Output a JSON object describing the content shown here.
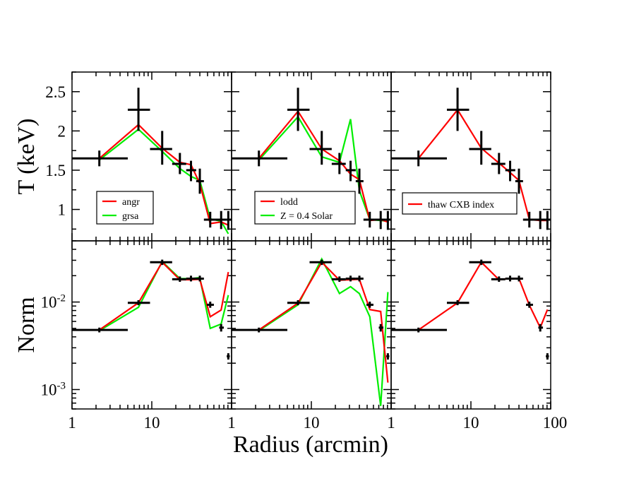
{
  "chart_data": {
    "type": "line",
    "layout": "2x3 panel grid with shared x axis",
    "xlabel": "Radius (arcmin)",
    "xscale": "log",
    "xlim": [
      1,
      100
    ],
    "x_tick_labels": [
      "1",
      "10",
      "1",
      "10",
      "1",
      "10",
      "100"
    ],
    "rows": [
      {
        "ylabel": "T (keV)",
        "yscale": "linear",
        "ylim": [
          0.6,
          2.75
        ],
        "y_tick_labels": [
          "2.5",
          "2",
          "1.5",
          "1"
        ],
        "y_tick_values": [
          2.5,
          2.0,
          1.5,
          1.0
        ]
      },
      {
        "ylabel": "Norm",
        "yscale": "log",
        "ylim": [
          0.0006,
          0.05
        ],
        "y_tick_labels": [
          {
            "base": "10",
            "exp": "-2",
            "value": 0.01
          },
          {
            "base": "10",
            "exp": "-3",
            "value": 0.001
          }
        ]
      }
    ],
    "data_points": {
      "T": [
        {
          "x": 2.2,
          "x_err": [
            1.0,
            5.0
          ],
          "y": 1.65,
          "y_err": [
            1.55,
            1.75
          ]
        },
        {
          "x": 6.8,
          "x_err": [
            5.0,
            9.5
          ],
          "y": 2.27,
          "y_err": [
            2.0,
            2.55
          ]
        },
        {
          "x": 13.5,
          "x_err": [
            9.5,
            18.0
          ],
          "y": 1.77,
          "y_err": [
            1.57,
            2.0
          ]
        },
        {
          "x": 22.5,
          "x_err": [
            18.0,
            27.0
          ],
          "y": 1.58,
          "y_err": [
            1.45,
            1.72
          ]
        },
        {
          "x": 31.0,
          "x_err": [
            27.0,
            36.0
          ],
          "y": 1.5,
          "y_err": [
            1.36,
            1.62
          ]
        },
        {
          "x": 40.0,
          "x_err": [
            36.0,
            45.0
          ],
          "y": 1.36,
          "y_err": [
            1.2,
            1.52
          ]
        },
        {
          "x": 54.0,
          "x_err": [
            45.0,
            62.0
          ],
          "y": 0.87,
          "y_err": [
            0.77,
            0.97
          ]
        },
        {
          "x": 74.0,
          "x_err": [
            62.0,
            86.0
          ],
          "y": 0.87,
          "y_err": [
            0.75,
            0.98
          ]
        },
        {
          "x": 91.0,
          "x_err": [
            86.0,
            100.0
          ],
          "y": 0.87,
          "y_err": [
            0.74,
            0.98
          ]
        }
      ],
      "Norm": [
        {
          "x": 2.2,
          "x_err": [
            1.0,
            5.0
          ],
          "y": 0.0048,
          "y_err": [
            0.0045,
            0.0051
          ]
        },
        {
          "x": 6.8,
          "x_err": [
            5.0,
            9.5
          ],
          "y": 0.0098,
          "y_err": [
            0.0092,
            0.0105
          ]
        },
        {
          "x": 13.5,
          "x_err": [
            9.5,
            18.0
          ],
          "y": 0.0285,
          "y_err": [
            0.0265,
            0.0305
          ]
        },
        {
          "x": 22.5,
          "x_err": [
            18.0,
            27.0
          ],
          "y": 0.0182,
          "y_err": [
            0.017,
            0.0196
          ]
        },
        {
          "x": 31.0,
          "x_err": [
            27.0,
            36.0
          ],
          "y": 0.0185,
          "y_err": [
            0.0172,
            0.02
          ]
        },
        {
          "x": 40.0,
          "x_err": [
            36.0,
            45.0
          ],
          "y": 0.0185,
          "y_err": [
            0.0172,
            0.02
          ]
        },
        {
          "x": 54.0,
          "x_err": [
            49.0,
            60.0
          ],
          "y": 0.0093,
          "y_err": [
            0.0086,
            0.0101
          ]
        },
        {
          "x": 74.0,
          "x_err": [
            70.0,
            80.0
          ],
          "y": 0.0051,
          "y_err": [
            0.0046,
            0.0056
          ]
        },
        {
          "x": 91.0,
          "x_err": [
            87.0,
            95.0
          ],
          "y": 0.0024,
          "y_err": [
            0.0022,
            0.0026
          ]
        }
      ]
    },
    "panels": [
      {
        "legend": [
          "angr",
          "grsa"
        ],
        "legend_position": "bottom-center",
        "series": [
          {
            "name": "angr",
            "color": "#ff0000",
            "T": [
              [
                2.2,
                1.65
              ],
              [
                6.8,
                2.08
              ],
              [
                13.5,
                1.78
              ],
              [
                22.5,
                1.6
              ],
              [
                31.0,
                1.57
              ],
              [
                40.0,
                1.33
              ],
              [
                54.0,
                0.82
              ],
              [
                74.0,
                0.84
              ],
              [
                91.0,
                0.8
              ]
            ],
            "Norm": [
              [
                2.2,
                0.0048
              ],
              [
                6.8,
                0.0098
              ],
              [
                13.5,
                0.0285
              ],
              [
                22.5,
                0.018
              ],
              [
                31.0,
                0.018
              ],
              [
                40.0,
                0.0182
              ],
              [
                54.0,
                0.0068
              ],
              [
                74.0,
                0.0081
              ],
              [
                91.0,
                0.022
              ]
            ]
          },
          {
            "name": "grsa",
            "color": "#00ee00",
            "T": [
              [
                2.2,
                1.63
              ],
              [
                6.8,
                2.02
              ],
              [
                13.5,
                1.74
              ],
              [
                22.5,
                1.52
              ],
              [
                31.0,
                1.42
              ],
              [
                40.0,
                1.37
              ],
              [
                54.0,
                0.88
              ],
              [
                74.0,
                0.85
              ],
              [
                91.0,
                0.69
              ]
            ],
            "Norm": [
              [
                2.2,
                0.0047
              ],
              [
                6.8,
                0.0087
              ],
              [
                13.5,
                0.029
              ],
              [
                22.5,
                0.0185
              ],
              [
                31.0,
                0.0185
              ],
              [
                40.0,
                0.019
              ],
              [
                54.0,
                0.005
              ],
              [
                74.0,
                0.0056
              ],
              [
                91.0,
                0.012
              ]
            ]
          }
        ]
      },
      {
        "legend": [
          "lodd",
          "Z = 0.4 Solar"
        ],
        "legend_position": "bottom-center",
        "series": [
          {
            "name": "lodd",
            "color": "#ff0000",
            "T": [
              [
                2.2,
                1.65
              ],
              [
                6.8,
                2.25
              ],
              [
                13.5,
                1.77
              ],
              [
                22.5,
                1.62
              ],
              [
                31.0,
                1.45
              ],
              [
                40.0,
                1.38
              ],
              [
                54.0,
                0.86
              ],
              [
                74.0,
                0.87
              ],
              [
                91.0,
                0.84
              ]
            ],
            "Norm": [
              [
                2.2,
                0.0048
              ],
              [
                6.8,
                0.0097
              ],
              [
                13.5,
                0.0285
              ],
              [
                22.5,
                0.0178
              ],
              [
                31.0,
                0.018
              ],
              [
                40.0,
                0.0182
              ],
              [
                54.0,
                0.0082
              ],
              [
                74.0,
                0.0078
              ],
              [
                91.0,
                0.0012
              ]
            ]
          },
          {
            "name": "Z = 0.4 Solar",
            "color": "#00ee00",
            "T": [
              [
                2.2,
                1.63
              ],
              [
                6.8,
                2.18
              ],
              [
                13.5,
                1.67
              ],
              [
                22.5,
                1.6
              ],
              [
                31.0,
                2.15
              ],
              [
                40.0,
                1.24
              ],
              [
                54.0,
                0.87
              ],
              [
                74.0,
                0.86
              ],
              [
                91.0,
                0.85
              ]
            ],
            "Norm": [
              [
                2.2,
                0.0047
              ],
              [
                6.8,
                0.0093
              ],
              [
                13.5,
                0.031
              ],
              [
                22.5,
                0.0125
              ],
              [
                31.0,
                0.015
              ],
              [
                40.0,
                0.0125
              ],
              [
                54.0,
                0.0068
              ],
              [
                74.0,
                0.00065
              ],
              [
                91.0,
                0.013
              ]
            ]
          }
        ]
      },
      {
        "legend": [
          "thaw CXB index"
        ],
        "legend_position": "bottom-center",
        "series": [
          {
            "name": "thaw CXB index",
            "color": "#ff0000",
            "T": [
              [
                2.2,
                1.65
              ],
              [
                6.8,
                2.27
              ],
              [
                13.5,
                1.78
              ],
              [
                22.5,
                1.59
              ],
              [
                31.0,
                1.47
              ],
              [
                40.0,
                1.37
              ],
              [
                54.0,
                0.87
              ],
              [
                74.0,
                0.86
              ],
              [
                91.0,
                0.86
              ]
            ],
            "Norm": [
              [
                2.2,
                0.0048
              ],
              [
                6.8,
                0.0098
              ],
              [
                13.5,
                0.0285
              ],
              [
                22.5,
                0.018
              ],
              [
                31.0,
                0.0186
              ],
              [
                40.0,
                0.0186
              ],
              [
                54.0,
                0.0092
              ],
              [
                74.0,
                0.0051
              ],
              [
                91.0,
                0.0082
              ]
            ]
          }
        ]
      }
    ]
  }
}
